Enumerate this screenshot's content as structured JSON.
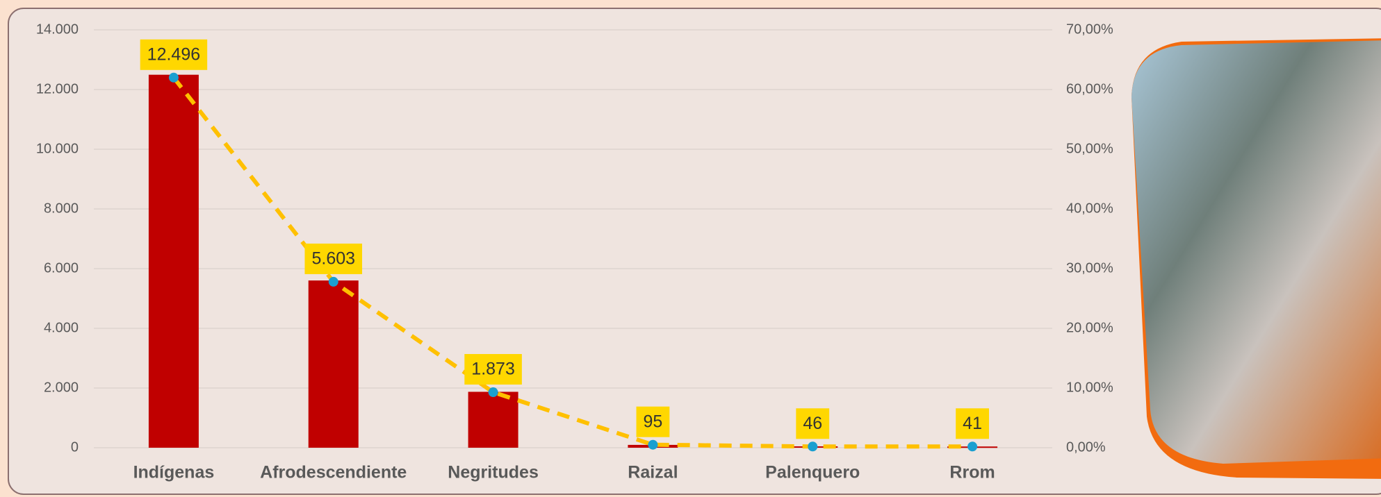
{
  "chart_data": {
    "type": "bar-line",
    "categories": [
      "Indígenas",
      "Afrodescendiente",
      "Negritudes",
      "Raizal",
      "Palenquero",
      "Rrom"
    ],
    "series": [
      {
        "type": "bar",
        "color": "#c00000",
        "values": [
          12496,
          5603,
          1873,
          95,
          46,
          41
        ],
        "value_labels": [
          "12.496",
          "5.603",
          "1.873",
          "95",
          "46",
          "41"
        ]
      },
      {
        "type": "line",
        "axis": "y2",
        "color": "#ffc000",
        "marker_color": "#1a9fd0",
        "dashed": true,
        "values": [
          62.0,
          27.8,
          9.3,
          0.5,
          0.2,
          0.2
        ]
      }
    ],
    "ylim": [
      0,
      14000
    ],
    "yticks": [
      0,
      {
        "value": 2000,
        "label": "2.000"
      },
      {
        "value": 4000,
        "label": "4.000"
      },
      {
        "value": 6000,
        "label": "6.000"
      },
      {
        "value": 8000,
        "label": "8.000"
      },
      {
        "value": 10000,
        "label": "10.000"
      },
      {
        "value": 12000,
        "label": "12.000"
      },
      {
        "value": 14000,
        "label": "14.000"
      }
    ],
    "y2lim": [
      0,
      70
    ],
    "y2ticks": [
      {
        "value": 0,
        "label": "0,00%"
      },
      {
        "value": 10,
        "label": "10,00%"
      },
      {
        "value": 20,
        "label": "20,00%"
      },
      {
        "value": 30,
        "label": "30,00%"
      },
      {
        "value": 40,
        "label": "40,00%"
      },
      {
        "value": 50,
        "label": "50,00%"
      },
      {
        "value": 60,
        "label": "60,00%"
      },
      {
        "value": 70,
        "label": "70,00%"
      }
    ],
    "grid": true
  }
}
